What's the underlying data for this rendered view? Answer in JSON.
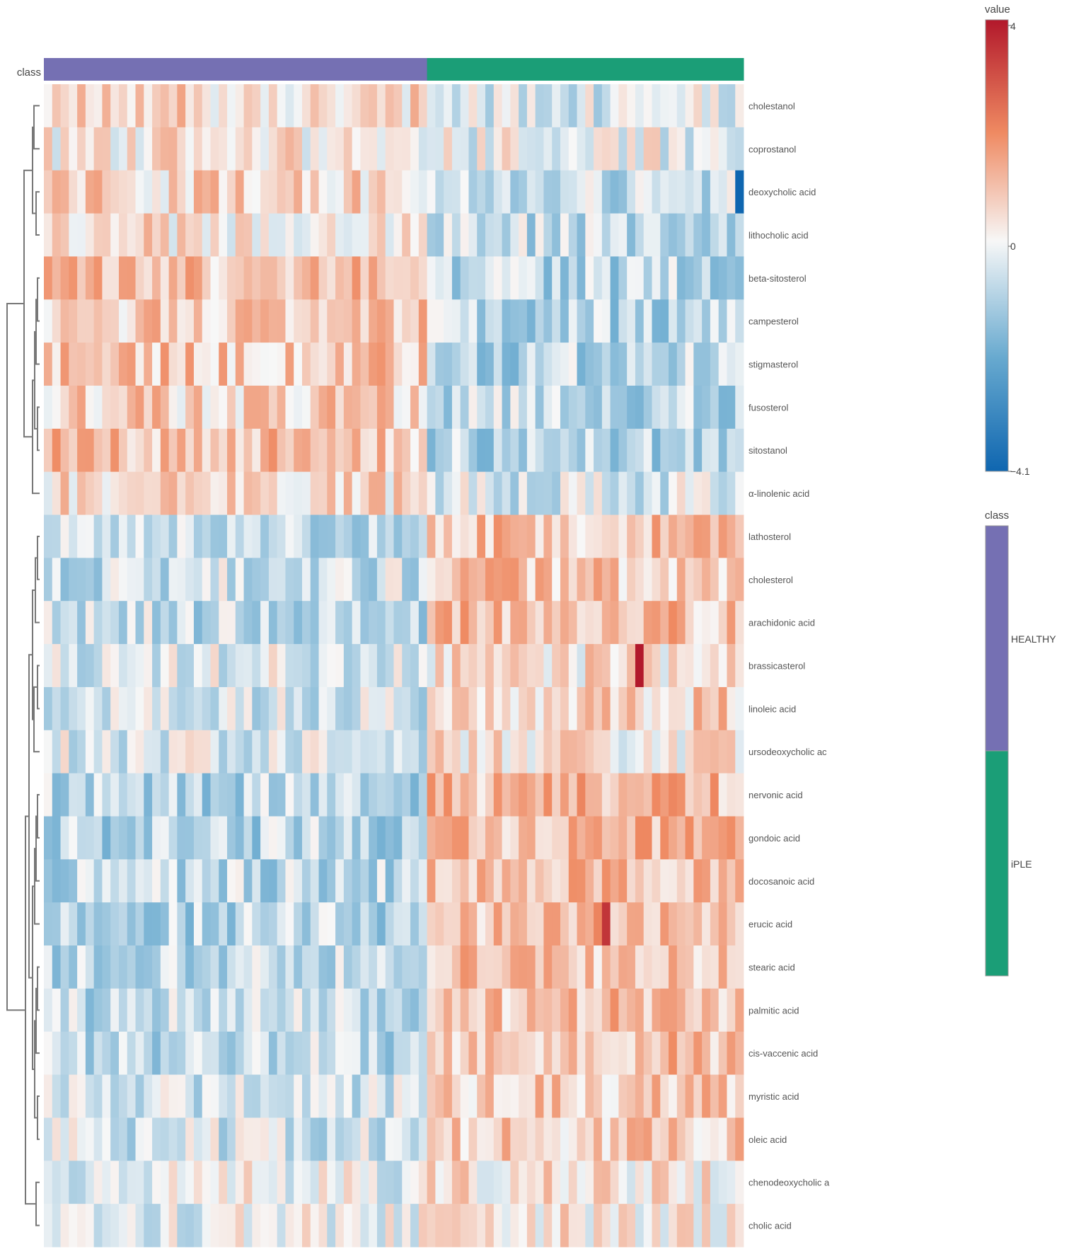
{
  "chart_data": {
    "type": "heatmap",
    "column_annotation_label": "class",
    "classes": [
      {
        "name": "HEALTHY",
        "color": "#7570b3",
        "n_columns": 46
      },
      {
        "name": "iPLE",
        "color": "#1b9e77",
        "n_columns": 38
      }
    ],
    "rows": [
      "cholestanol",
      "coprostanol",
      "deoxycholic acid",
      "lithocholic acid",
      "beta-sitosterol",
      "campesterol",
      "stigmasterol",
      "fusosterol",
      "sitostanol",
      "α-linolenic acid",
      "lathosterol",
      "cholesterol",
      "arachidonic acid",
      "brassicasterol",
      "linoleic acid",
      "ursodeoxycholic ac",
      "nervonic acid",
      "gondoic acid",
      "docosanoic acid",
      "erucic acid",
      "stearic acid",
      "palmitic acid",
      "cis-vaccenic acid",
      "myristic acid",
      "oleic acid",
      "chenodeoxycholic a",
      "cholic acid"
    ],
    "row_mean_values": [
      {
        "healthy": 0.6,
        "iple": -0.3
      },
      {
        "healthy": 0.3,
        "iple": -0.1
      },
      {
        "healthy": 0.6,
        "iple": -0.7
      },
      {
        "healthy": 0.4,
        "iple": -0.7
      },
      {
        "healthy": 0.9,
        "iple": -0.9
      },
      {
        "healthy": 0.9,
        "iple": -0.9
      },
      {
        "healthy": 0.9,
        "iple": -0.9
      },
      {
        "healthy": 0.7,
        "iple": -0.8
      },
      {
        "healthy": 1.0,
        "iple": -0.9
      },
      {
        "healthy": 0.5,
        "iple": -0.4
      },
      {
        "healthy": -0.8,
        "iple": 1.0
      },
      {
        "healthy": -0.6,
        "iple": 0.9
      },
      {
        "healthy": -0.7,
        "iple": 1.0
      },
      {
        "healthy": -0.3,
        "iple": 0.4
      },
      {
        "healthy": -0.5,
        "iple": 0.7
      },
      {
        "healthy": -0.3,
        "iple": 0.3
      },
      {
        "healthy": -0.9,
        "iple": 1.1
      },
      {
        "healthy": -0.9,
        "iple": 1.1
      },
      {
        "healthy": -0.8,
        "iple": 1.0
      },
      {
        "healthy": -0.9,
        "iple": 1.1
      },
      {
        "healthy": -0.8,
        "iple": 1.0
      },
      {
        "healthy": -0.8,
        "iple": 1.0
      },
      {
        "healthy": -0.8,
        "iple": 1.0
      },
      {
        "healthy": -0.6,
        "iple": 0.8
      },
      {
        "healthy": -0.5,
        "iple": 0.7
      },
      {
        "healthy": -0.1,
        "iple": 0.3
      },
      {
        "healthy": -0.1,
        "iple": 0.3
      }
    ],
    "notable_cells": [
      {
        "row": "deoxycholic acid",
        "column": 84,
        "value": -4.1
      },
      {
        "row": "brassicasterol",
        "column": 72,
        "value": 4.0
      },
      {
        "row": "erucic acid",
        "column": 68,
        "value": 3.5
      }
    ],
    "value_range": [
      -4.1,
      4
    ],
    "colorbar": {
      "title": "value",
      "ticks": [
        "4",
        "0",
        "−4.1"
      ],
      "colors": {
        "high": "#c51b26",
        "mid": "#f7f7f7",
        "low": "#0f66b0"
      }
    }
  }
}
